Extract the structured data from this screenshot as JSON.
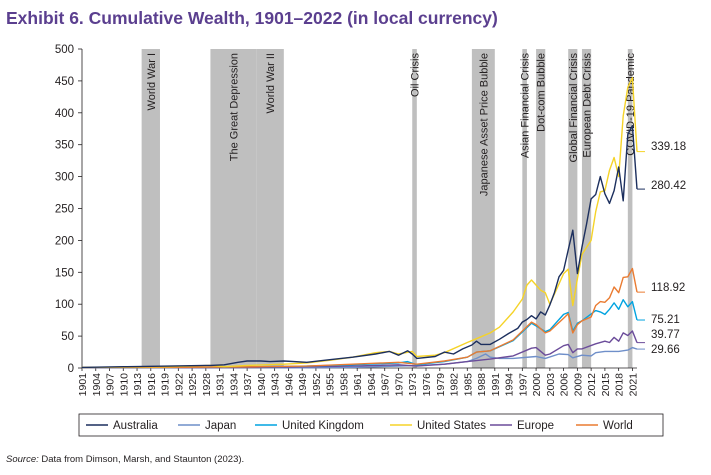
{
  "title": "Exhibit 6. Cumulative Wealth, 1901–2022 (in local currency)",
  "source": {
    "label": "Source:",
    "text": "Data from Dimson, Marsh, and Staunton (2023)."
  },
  "chart_data": {
    "type": "line",
    "xlim": [
      1901,
      2022
    ],
    "ylim": [
      0,
      500
    ],
    "y_ticks": [
      0,
      50,
      100,
      150,
      200,
      250,
      300,
      350,
      400,
      450,
      500
    ],
    "x_ticks": [
      1901,
      1904,
      1907,
      1910,
      1913,
      1916,
      1919,
      1922,
      1925,
      1928,
      1931,
      1934,
      1937,
      1940,
      1943,
      1946,
      1949,
      1952,
      1955,
      1958,
      1961,
      1964,
      1967,
      1970,
      1973,
      1976,
      1979,
      1982,
      1985,
      1988,
      1991,
      1994,
      1997,
      2000,
      2003,
      2006,
      2009,
      2012,
      2015,
      2018,
      2021
    ],
    "grid": false,
    "legend_position": "bottom",
    "events": [
      {
        "label": "World War I",
        "start": 1914,
        "end": 1918
      },
      {
        "label": "The Great Depression",
        "start": 1929,
        "end": 1939
      },
      {
        "label": "World War II",
        "start": 1939,
        "end": 1945
      },
      {
        "label": "Oil Crisis",
        "start": 1973,
        "end": 1974
      },
      {
        "label": "Japanese Asset Price Bubble",
        "start": 1986,
        "end": 1991
      },
      {
        "label": "Asian Financial Crisis",
        "start": 1997,
        "end": 1998
      },
      {
        "label": "Dot-com Bubble",
        "start": 2000,
        "end": 2002
      },
      {
        "label": "Global Financial Crisis",
        "start": 2007,
        "end": 2009
      },
      {
        "label": "European Debt Crisis",
        "start": 2010,
        "end": 2012
      },
      {
        "label": "COVID-19 Pandemic",
        "start": 2020,
        "end": 2021
      }
    ],
    "series": [
      {
        "name": "Australia",
        "color": "#1c2f5e",
        "end_label": "280.42",
        "x": [
          1901,
          1910,
          1920,
          1928,
          1929,
          1932,
          1935,
          1937,
          1940,
          1942,
          1945,
          1950,
          1955,
          1960,
          1965,
          1968,
          1970,
          1972,
          1973,
          1974,
          1978,
          1980,
          1982,
          1984,
          1986,
          1987,
          1988,
          1990,
          1992,
          1994,
          1996,
          1997,
          1998,
          1999,
          2000,
          2001,
          2002,
          2003,
          2004,
          2005,
          2006,
          2007,
          2008,
          2009,
          2010,
          2011,
          2012,
          2013,
          2014,
          2015,
          2016,
          2017,
          2018,
          2019,
          2020,
          2021,
          2022
        ],
        "y": [
          1,
          2,
          3,
          4,
          4,
          5,
          9,
          11,
          11,
          10,
          11,
          9,
          13,
          17,
          22,
          26,
          20,
          27,
          22,
          15,
          18,
          25,
          22,
          30,
          36,
          42,
          37,
          37,
          45,
          54,
          62,
          72,
          76,
          82,
          77,
          88,
          83,
          99,
          118,
          143,
          153,
          185,
          216,
          148,
          190,
          225,
          265,
          272,
          300,
          273,
          258,
          278,
          315,
          262,
          366,
          380,
          280.42
        ]
      },
      {
        "name": "Japan",
        "color": "#6f8fc9",
        "end_label": "29.66",
        "x": [
          1901,
          1930,
          1945,
          1948,
          1960,
          1970,
          1975,
          1980,
          1985,
          1987,
          1989,
          1990,
          1992,
          1995,
          2000,
          2002,
          2005,
          2007,
          2008,
          2010,
          2012,
          2013,
          2015,
          2018,
          2020,
          2021,
          2022
        ],
        "y": [
          0.3,
          0.5,
          0.5,
          0.3,
          1,
          3,
          4,
          6,
          10,
          15,
          22,
          17,
          15,
          15,
          18,
          15,
          22,
          21,
          16,
          20,
          19,
          24,
          26,
          26,
          28,
          32,
          29.66
        ]
      },
      {
        "name": "United Kingdom",
        "color": "#00a3e0",
        "end_label": "75.21",
        "x": [
          1901,
          1920,
          1940,
          1950,
          1960,
          1970,
          1972,
          1974,
          1980,
          1985,
          1987,
          1990,
          1995,
          1999,
          2000,
          2002,
          2003,
          2006,
          2007,
          2008,
          2009,
          2010,
          2013,
          2014,
          2015,
          2016,
          2017,
          2018,
          2019,
          2020,
          2021,
          2022
        ],
        "y": [
          1,
          1,
          2,
          3,
          5,
          8,
          10,
          5,
          10,
          17,
          25,
          27,
          43,
          70,
          66,
          57,
          60,
          84,
          87,
          58,
          70,
          74,
          90,
          88,
          84,
          92,
          102,
          92,
          107,
          96,
          104,
          75.21
        ]
      },
      {
        "name": "United States",
        "color": "#f5d328",
        "end_label": "339.18",
        "x": [
          1901,
          1920,
          1929,
          1932,
          1937,
          1945,
          1950,
          1955,
          1960,
          1965,
          1968,
          1970,
          1973,
          1974,
          1978,
          1980,
          1985,
          1987,
          1990,
          1992,
          1995,
          1997,
          1998,
          1999,
          2000,
          2001,
          2002,
          2003,
          2006,
          2007,
          2008,
          2009,
          2010,
          2012,
          2013,
          2014,
          2015,
          2016,
          2017,
          2018,
          2019,
          2020,
          2021,
          2022
        ],
        "y": [
          1,
          2,
          4,
          2,
          4,
          6,
          8,
          12,
          17,
          24,
          26,
          22,
          26,
          18,
          20,
          24,
          40,
          46,
          55,
          64,
          88,
          108,
          130,
          138,
          130,
          122,
          118,
          100,
          148,
          155,
          98,
          140,
          178,
          200,
          245,
          276,
          278,
          310,
          330,
          300,
          395,
          440,
          455,
          339.18
        ]
      },
      {
        "name": "Europe",
        "color": "#6b4c9a",
        "end_label": "39.77",
        "x": [
          1901,
          1940,
          1960,
          1970,
          1974,
          1980,
          1985,
          1990,
          1995,
          1999,
          2000,
          2002,
          2003,
          2006,
          2007,
          2008,
          2009,
          2010,
          2013,
          2015,
          2016,
          2017,
          2018,
          2019,
          2020,
          2021,
          2022
        ],
        "y": [
          0.5,
          1,
          3,
          5,
          3,
          6,
          10,
          14,
          19,
          31,
          32,
          20,
          22,
          35,
          37,
          24,
          30,
          30,
          38,
          42,
          40,
          48,
          42,
          55,
          51,
          58,
          39.77
        ]
      },
      {
        "name": "World",
        "color": "#ea7b31",
        "end_label": "118.92",
        "x": [
          1901,
          1920,
          1940,
          1950,
          1960,
          1970,
          1974,
          1980,
          1985,
          1987,
          1990,
          1995,
          1999,
          2000,
          2002,
          2003,
          2006,
          2007,
          2008,
          2009,
          2010,
          2012,
          2013,
          2014,
          2015,
          2016,
          2017,
          2018,
          2019,
          2020,
          2021,
          2022
        ],
        "y": [
          1,
          1,
          2,
          3,
          6,
          9,
          6,
          11,
          17,
          25,
          27,
          44,
          72,
          68,
          55,
          58,
          78,
          85,
          55,
          68,
          74,
          80,
          98,
          104,
          103,
          110,
          127,
          118,
          142,
          143,
          156,
          118.92
        ]
      }
    ]
  }
}
